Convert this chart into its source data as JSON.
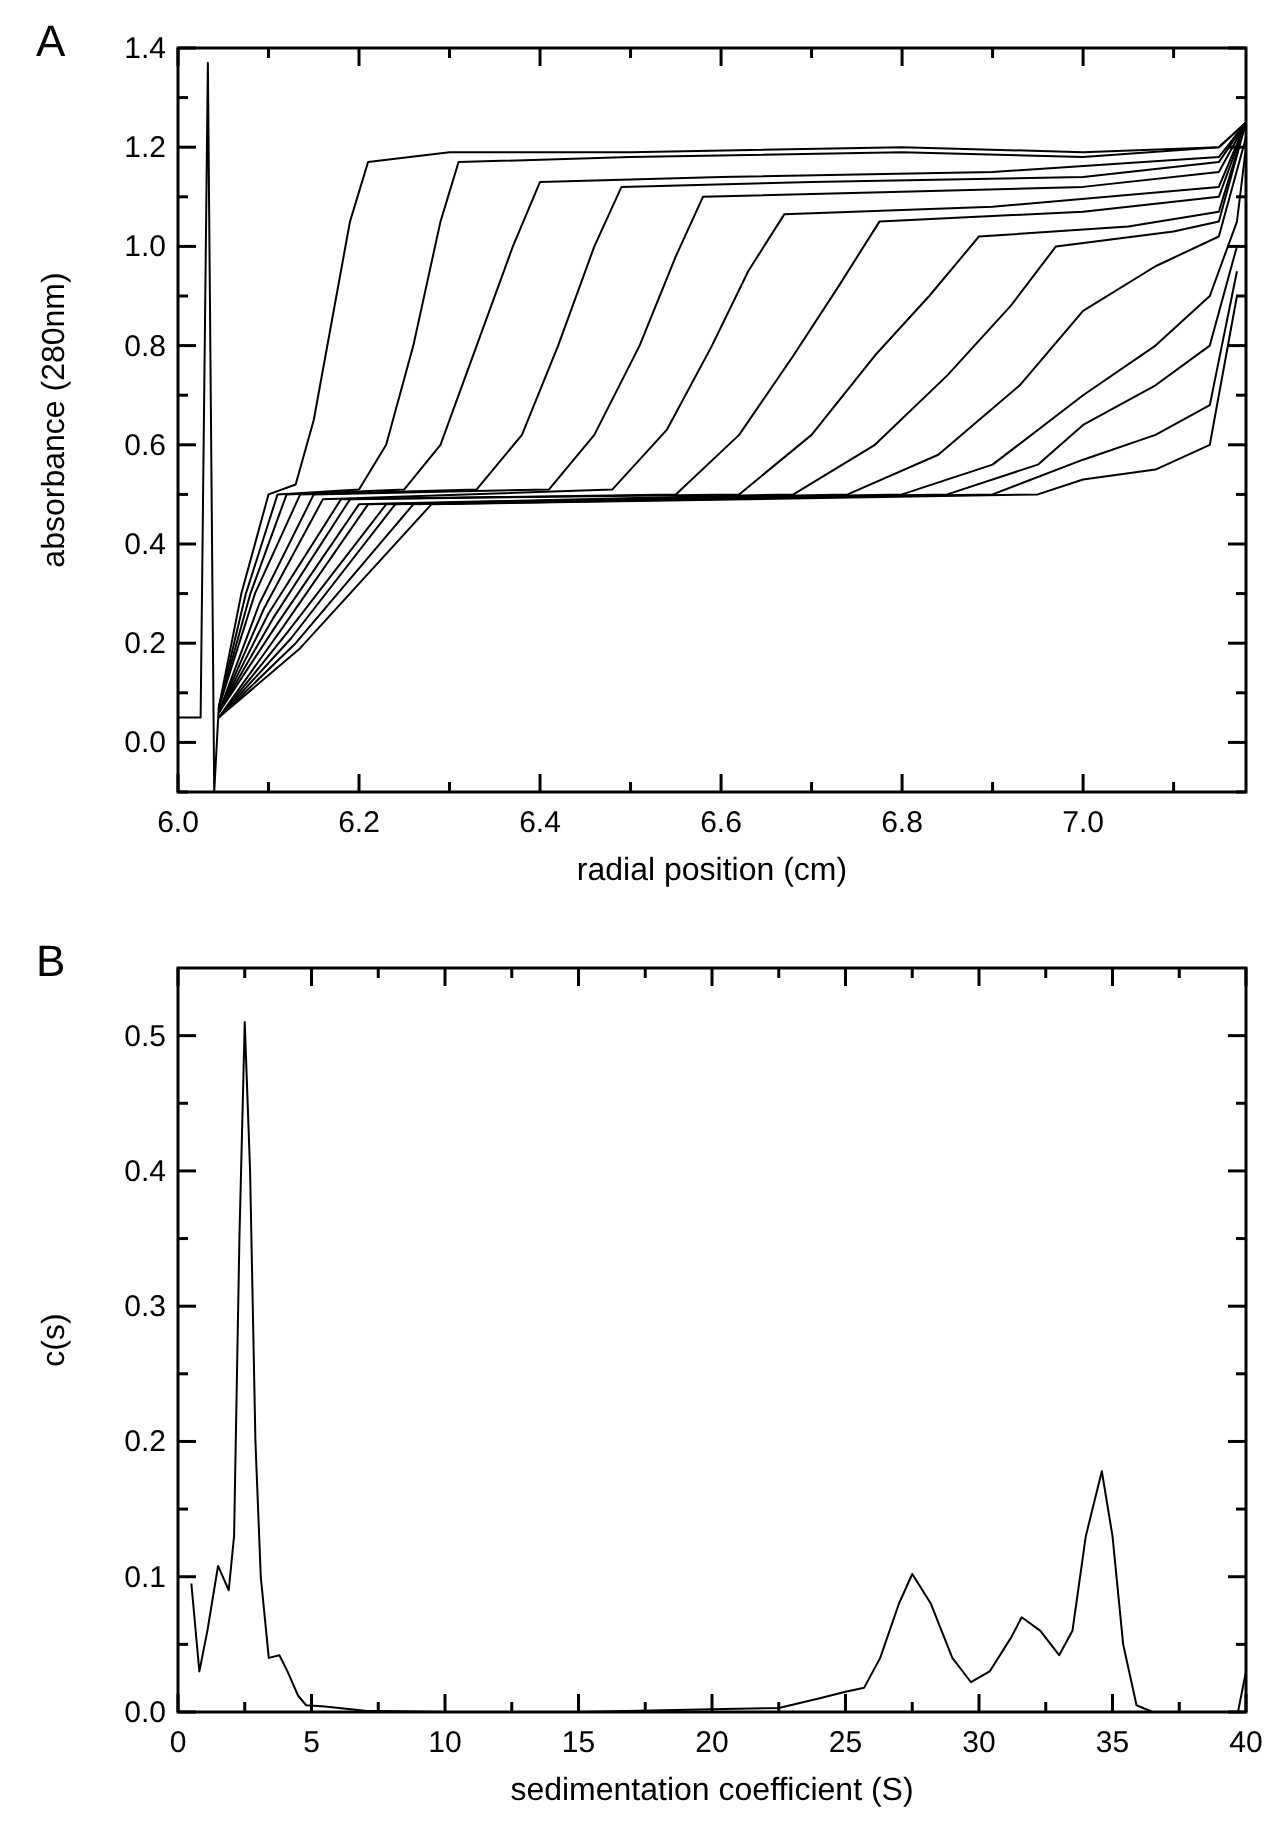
{
  "chart_data": [
    {
      "type": "line",
      "title": "A",
      "xlabel": "radial position (cm)",
      "ylabel": "absorbance (280nm)",
      "xlim": [
        6.0,
        7.18
      ],
      "ylim": [
        -0.1,
        1.4
      ],
      "xticks": [
        {
          "value": 6,
          "label": "6.0"
        },
        {
          "value": 6.1,
          "label": null
        },
        6.2,
        {
          "value": 6.3,
          "label": null
        },
        6.4,
        {
          "value": 6.5,
          "label": null
        },
        6.6,
        {
          "value": 6.7,
          "label": null
        },
        6.8,
        {
          "value": 6.9,
          "label": null
        },
        {
          "value": 7,
          "label": "7.0"
        },
        {
          "value": 7.1,
          "label": null
        }
      ],
      "yticks": [
        {
          "value": -0.1,
          "label": null
        },
        {
          "value": 0,
          "label": "0.0"
        },
        {
          "value": 0.1,
          "label": null
        },
        0.2,
        {
          "value": 0.3,
          "label": null
        },
        0.4,
        {
          "value": 0.5,
          "label": null
        },
        0.6,
        {
          "value": 0.7,
          "label": null
        },
        0.8,
        {
          "value": 0.9,
          "label": null
        },
        {
          "value": 1,
          "label": "1.0"
        },
        {
          "value": 1.1,
          "label": null
        },
        1.2,
        {
          "value": 1.3,
          "label": null
        },
        1.4
      ],
      "series": [
        {
          "color": "#000000",
          "x": [
            6.0,
            6.025,
            6.033,
            6.04,
            6.045,
            6.07,
            6.1,
            6.13,
            6.15,
            6.17,
            6.19,
            6.21,
            6.3,
            6.5,
            6.8,
            7.0,
            7.15,
            7.18
          ],
          "values": [
            0.05,
            0.05,
            1.37,
            -0.1,
            0.07,
            0.3,
            0.5,
            0.52,
            0.65,
            0.85,
            1.05,
            1.17,
            1.19,
            1.19,
            1.2,
            1.19,
            1.2,
            1.25
          ]
        },
        {
          "color": "#000000",
          "x": [
            6.045,
            6.075,
            6.11,
            6.2,
            6.23,
            6.26,
            6.29,
            6.31,
            6.5,
            6.8,
            7.0,
            7.15,
            7.18
          ],
          "values": [
            0.07,
            0.3,
            0.5,
            0.51,
            0.6,
            0.8,
            1.05,
            1.17,
            1.18,
            1.19,
            1.18,
            1.2,
            1.25
          ]
        },
        {
          "color": "#000000",
          "x": [
            6.045,
            6.08,
            6.12,
            6.25,
            6.29,
            6.33,
            6.37,
            6.4,
            6.6,
            6.9,
            7.15,
            7.18
          ],
          "values": [
            0.07,
            0.3,
            0.5,
            0.51,
            0.6,
            0.8,
            1.0,
            1.13,
            1.14,
            1.15,
            1.18,
            1.25
          ]
        },
        {
          "color": "#000000",
          "x": [
            6.045,
            6.085,
            6.135,
            6.33,
            6.38,
            6.42,
            6.46,
            6.49,
            6.7,
            7.0,
            7.15,
            7.18
          ],
          "values": [
            0.07,
            0.3,
            0.5,
            0.51,
            0.62,
            0.8,
            1.0,
            1.12,
            1.13,
            1.14,
            1.17,
            1.25
          ]
        },
        {
          "color": "#000000",
          "x": [
            6.045,
            6.09,
            6.15,
            6.41,
            6.46,
            6.51,
            6.55,
            6.58,
            6.8,
            7.0,
            7.15,
            7.18
          ],
          "values": [
            0.06,
            0.28,
            0.5,
            0.51,
            0.62,
            0.8,
            0.98,
            1.1,
            1.11,
            1.12,
            1.15,
            1.25
          ]
        },
        {
          "color": "#000000",
          "x": [
            6.045,
            6.095,
            6.16,
            6.48,
            6.54,
            6.59,
            6.63,
            6.67,
            6.9,
            7.15,
            7.18
          ],
          "values": [
            0.06,
            0.27,
            0.49,
            0.51,
            0.63,
            0.8,
            0.95,
            1.065,
            1.08,
            1.12,
            1.25
          ]
        },
        {
          "color": "#000000",
          "x": [
            6.045,
            6.1,
            6.18,
            6.55,
            6.62,
            6.68,
            6.73,
            6.775,
            7.0,
            7.15,
            7.18
          ],
          "values": [
            0.06,
            0.26,
            0.49,
            0.5,
            0.62,
            0.78,
            0.92,
            1.05,
            1.07,
            1.1,
            1.25
          ]
        },
        {
          "color": "#000000",
          "x": [
            6.045,
            6.105,
            6.19,
            6.62,
            6.7,
            6.77,
            6.83,
            6.885,
            7.05,
            7.15,
            7.18
          ],
          "values": [
            0.06,
            0.25,
            0.49,
            0.5,
            0.62,
            0.78,
            0.9,
            1.02,
            1.04,
            1.07,
            1.25
          ]
        },
        {
          "color": "#000000",
          "x": [
            6.045,
            6.11,
            6.2,
            6.68,
            6.77,
            6.85,
            6.92,
            6.97,
            7.1,
            7.15,
            7.18
          ],
          "values": [
            0.06,
            0.24,
            0.48,
            0.5,
            0.6,
            0.74,
            0.88,
            1.0,
            1.03,
            1.05,
            1.25
          ]
        },
        {
          "color": "#000000",
          "x": [
            6.045,
            6.115,
            6.21,
            6.74,
            6.84,
            6.93,
            7.0,
            7.08,
            7.15,
            7.18
          ],
          "values": [
            0.05,
            0.23,
            0.48,
            0.5,
            0.58,
            0.72,
            0.87,
            0.96,
            1.02,
            1.22
          ]
        },
        {
          "color": "#000000",
          "x": [
            6.045,
            6.12,
            6.23,
            6.8,
            6.9,
            7.0,
            7.08,
            7.14,
            7.17,
            7.18
          ],
          "values": [
            0.05,
            0.22,
            0.48,
            0.5,
            0.56,
            0.7,
            0.8,
            0.9,
            1.05,
            1.2
          ]
        },
        {
          "color": "#000000",
          "x": [
            6.045,
            6.125,
            6.24,
            6.85,
            6.95,
            7.0,
            7.08,
            7.14,
            7.17
          ],
          "values": [
            0.05,
            0.21,
            0.48,
            0.5,
            0.56,
            0.64,
            0.72,
            0.8,
            1.0
          ]
        },
        {
          "color": "#000000",
          "x": [
            6.045,
            6.13,
            6.26,
            6.9,
            7.0,
            7.08,
            7.14,
            7.17
          ],
          "values": [
            0.05,
            0.2,
            0.48,
            0.5,
            0.57,
            0.62,
            0.68,
            0.95
          ]
        },
        {
          "color": "#000000",
          "x": [
            6.045,
            6.135,
            6.28,
            6.95,
            7.0,
            7.08,
            7.14,
            7.17
          ],
          "values": [
            0.05,
            0.19,
            0.48,
            0.5,
            0.53,
            0.55,
            0.6,
            0.9
          ]
        }
      ]
    },
    {
      "type": "line",
      "title": "B",
      "xlabel": "sedimentation coefficient (S)",
      "ylabel": "c(s)",
      "xlim": [
        0,
        40
      ],
      "ylim": [
        0,
        0.55
      ],
      "xticks": [
        0,
        {
          "value": 2.5,
          "label": null
        },
        5,
        {
          "value": 7.5,
          "label": null
        },
        10,
        {
          "value": 12.5,
          "label": null
        },
        15,
        {
          "value": 17.5,
          "label": null
        },
        20,
        {
          "value": 22.5,
          "label": null
        },
        25,
        {
          "value": 27.5,
          "label": null
        },
        30,
        {
          "value": 32.5,
          "label": null
        },
        35,
        {
          "value": 37.5,
          "label": null
        },
        40
      ],
      "yticks": [
        {
          "value": 0,
          "label": "0.0"
        },
        {
          "value": 0.05,
          "label": null
        },
        0.1,
        {
          "value": 0.15,
          "label": null
        },
        0.2,
        {
          "value": 0.25,
          "label": null
        },
        0.3,
        {
          "value": 0.35,
          "label": null
        },
        0.4,
        {
          "value": 0.45,
          "label": null
        },
        0.5
      ],
      "series": [
        {
          "color": "#000000",
          "x": [
            0.5,
            0.8,
            1.1,
            1.5,
            1.9,
            2.1,
            2.3,
            2.5,
            2.7,
            2.9,
            3.1,
            3.4,
            3.8,
            4.1,
            4.5,
            4.8,
            5.5,
            7,
            10,
            15,
            20,
            22.5,
            24,
            25,
            25.7,
            26.3,
            27,
            27.5,
            28.2,
            29,
            29.7,
            30.4,
            31.2,
            31.6,
            32.3,
            33,
            33.5,
            34,
            34.6,
            35,
            35.4,
            35.9,
            36.5,
            39.7,
            40
          ],
          "values": [
            0.095,
            0.03,
            0.06,
            0.108,
            0.09,
            0.13,
            0.35,
            0.51,
            0.4,
            0.2,
            0.1,
            0.04,
            0.042,
            0.03,
            0.012,
            0.005,
            0.004,
            0.001,
            0,
            0,
            0.002,
            0.003,
            0.01,
            0.015,
            0.018,
            0.04,
            0.08,
            0.102,
            0.08,
            0.04,
            0.022,
            0.03,
            0.055,
            0.07,
            0.06,
            0.042,
            0.06,
            0.13,
            0.178,
            0.13,
            0.05,
            0.005,
            0,
            0,
            0.03
          ]
        }
      ]
    }
  ]
}
